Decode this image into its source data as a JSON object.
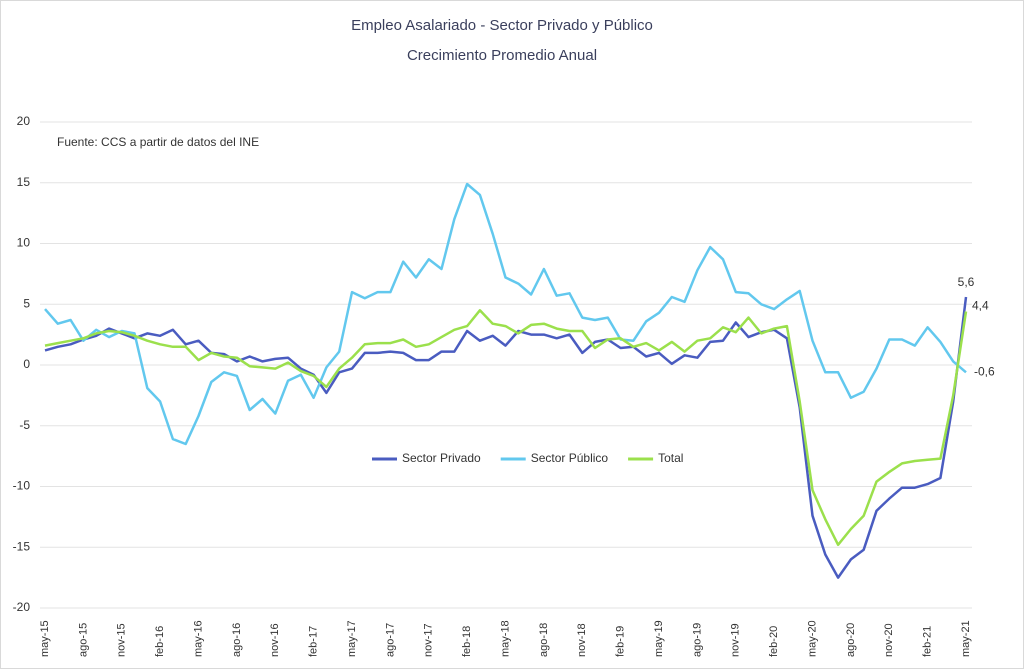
{
  "chart_data": {
    "type": "line",
    "title": "Empleo Asalariado - Sector Privado y Público",
    "subtitle": "Crecimiento Promedio Anual",
    "annotation": "Fuente: CCS a partir de datos del INE",
    "categories": [
      "may-15",
      null,
      null,
      "ago-15",
      null,
      null,
      "nov-15",
      null,
      null,
      "feb-16",
      null,
      null,
      "may-16",
      null,
      null,
      "ago-16",
      null,
      null,
      "nov-16",
      null,
      null,
      "feb-17",
      null,
      null,
      "may-17",
      null,
      null,
      "ago-17",
      null,
      null,
      "nov-17",
      null,
      null,
      "feb-18",
      null,
      null,
      "may-18",
      null,
      null,
      "ago-18",
      null,
      null,
      "nov-18",
      null,
      null,
      "feb-19",
      null,
      null,
      "may-19",
      null,
      null,
      "ago-19",
      null,
      null,
      "nov-19",
      null,
      null,
      "feb-20",
      null,
      null,
      "may-20",
      null,
      null,
      "ago-20",
      null,
      null,
      "nov-20",
      null,
      null,
      "feb-21",
      null,
      null,
      "may-21"
    ],
    "ylim": [
      -20,
      20
    ],
    "yticks": [
      20,
      15,
      10,
      5,
      0,
      -5,
      -10,
      -15,
      -20
    ],
    "grid": true,
    "legend": "center",
    "series": [
      {
        "name": "Sector Privado",
        "color": "#4a5cc0",
        "values": [
          1.2,
          1.5,
          1.7,
          2.1,
          2.4,
          3.0,
          2.6,
          2.2,
          2.6,
          2.4,
          2.9,
          1.7,
          2.0,
          1.0,
          0.9,
          0.3,
          0.7,
          0.3,
          0.5,
          0.6,
          -0.3,
          -0.8,
          -2.3,
          -0.6,
          -0.3,
          1.0,
          1.0,
          1.1,
          1.0,
          0.4,
          0.4,
          1.1,
          1.1,
          2.8,
          2.0,
          2.4,
          1.6,
          2.8,
          2.5,
          2.5,
          2.2,
          2.5,
          1.0,
          1.9,
          2.1,
          1.4,
          1.5,
          0.7,
          1.0,
          0.1,
          0.8,
          0.6,
          1.9,
          2.0,
          3.5,
          2.3,
          2.7,
          2.9,
          2.2,
          -3.5,
          -12.4,
          -15.6,
          -17.5,
          -16.0,
          -15.2,
          -12.0,
          -11.0,
          -10.1,
          -10.1,
          -9.8,
          -9.3,
          -3.0,
          5.6
        ],
        "value_labels": [
          null,
          null,
          null,
          null,
          null,
          null,
          null,
          null,
          null,
          null,
          null,
          null,
          null,
          null,
          null,
          null,
          null,
          null,
          null,
          null,
          null,
          null,
          null,
          null,
          null,
          null,
          null,
          null,
          null,
          null,
          null,
          null,
          null,
          null,
          null,
          null,
          null,
          null,
          null,
          null,
          null,
          null,
          null,
          null,
          null,
          null,
          null,
          null,
          null,
          null,
          null,
          null,
          null,
          null,
          null,
          null,
          null,
          null,
          null,
          null,
          null,
          null,
          null,
          null,
          null,
          null,
          null,
          null,
          null,
          null,
          null,
          null,
          "5,6"
        ]
      },
      {
        "name": "Sector Público",
        "color": "#62c8ee",
        "values": [
          4.6,
          3.4,
          3.7,
          2.0,
          2.9,
          2.3,
          2.8,
          2.6,
          -1.9,
          -3.0,
          -6.1,
          -6.5,
          -4.2,
          -1.4,
          -0.6,
          -0.9,
          -3.7,
          -2.8,
          -4.0,
          -1.3,
          -0.8,
          -2.7,
          -0.2,
          1.1,
          6.0,
          5.5,
          6.0,
          6.0,
          8.5,
          7.2,
          8.7,
          7.9,
          12.0,
          14.9,
          14.0,
          10.8,
          7.2,
          6.7,
          5.8,
          7.9,
          5.7,
          5.9,
          3.9,
          3.7,
          3.9,
          2.1,
          2.0,
          3.6,
          4.3,
          5.6,
          5.2,
          7.8,
          9.7,
          8.7,
          6.0,
          5.9,
          5.0,
          4.6,
          5.4,
          6.1,
          2.0,
          -0.6,
          -0.6,
          -2.7,
          -2.2,
          -0.3,
          2.1,
          2.1,
          1.6,
          3.1,
          1.9,
          0.3,
          -0.6
        ],
        "value_labels": [
          null,
          null,
          null,
          null,
          null,
          null,
          null,
          null,
          null,
          null,
          null,
          null,
          null,
          null,
          null,
          null,
          null,
          null,
          null,
          null,
          null,
          null,
          null,
          null,
          null,
          null,
          null,
          null,
          null,
          null,
          null,
          null,
          null,
          null,
          null,
          null,
          null,
          null,
          null,
          null,
          null,
          null,
          null,
          null,
          null,
          null,
          null,
          null,
          null,
          null,
          null,
          null,
          null,
          null,
          null,
          null,
          null,
          null,
          null,
          null,
          null,
          null,
          null,
          null,
          null,
          null,
          null,
          null,
          null,
          null,
          null,
          null,
          "-0,6"
        ]
      },
      {
        "name": "Total",
        "color": "#9be04c",
        "values": [
          1.6,
          1.8,
          2.0,
          2.2,
          2.6,
          2.8,
          2.7,
          2.4,
          2.0,
          1.7,
          1.5,
          1.5,
          0.4,
          1.0,
          0.7,
          0.6,
          -0.1,
          -0.2,
          -0.3,
          0.2,
          -0.5,
          -0.9,
          -1.8,
          -0.3,
          0.6,
          1.7,
          1.8,
          1.8,
          2.1,
          1.5,
          1.7,
          2.3,
          2.9,
          3.2,
          4.5,
          3.4,
          3.2,
          2.6,
          3.3,
          3.4,
          3.0,
          2.8,
          2.8,
          1.4,
          2.1,
          2.2,
          1.5,
          1.8,
          1.2,
          1.9,
          1.1,
          2.0,
          2.2,
          3.1,
          2.7,
          3.9,
          2.6,
          3.0,
          3.2,
          -3.0,
          -10.3,
          -12.7,
          -14.8,
          -13.5,
          -12.4,
          -9.6,
          -8.8,
          -8.1,
          -7.9,
          -7.8,
          -7.7,
          -2.5,
          4.4
        ],
        "value_labels": [
          null,
          null,
          null,
          null,
          null,
          null,
          null,
          null,
          null,
          null,
          null,
          null,
          null,
          null,
          null,
          null,
          null,
          null,
          null,
          null,
          null,
          null,
          null,
          null,
          null,
          null,
          null,
          null,
          null,
          null,
          null,
          null,
          null,
          null,
          null,
          null,
          null,
          null,
          null,
          null,
          null,
          null,
          null,
          null,
          null,
          null,
          null,
          null,
          null,
          null,
          null,
          null,
          null,
          null,
          null,
          null,
          null,
          null,
          null,
          null,
          null,
          null,
          null,
          null,
          null,
          null,
          null,
          null,
          null,
          null,
          null,
          null,
          "4,4"
        ]
      }
    ]
  }
}
